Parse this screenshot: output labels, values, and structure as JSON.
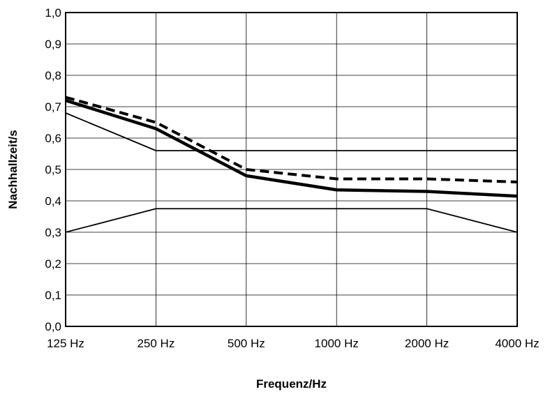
{
  "chart_data": {
    "type": "line",
    "title": "",
    "xlabel": "Frequenz/Hz",
    "ylabel": "Nachhallzeit/s",
    "categories": [
      "125 Hz",
      "250 Hz",
      "500 Hz",
      "1000 Hz",
      "2000 Hz",
      "4000 Hz"
    ],
    "yticks": [
      "0,0",
      "0,1",
      "0,2",
      "0,3",
      "0,4",
      "0,5",
      "0,6",
      "0,7",
      "0,8",
      "0,9",
      "1,0"
    ],
    "ylim": [
      0,
      1.0
    ],
    "grid": true,
    "legend": "none",
    "series": [
      {
        "style": "dashed-thick",
        "values": [
          0.73,
          0.65,
          0.5,
          0.47,
          0.47,
          0.46
        ]
      },
      {
        "style": "solid-thick",
        "values": [
          0.72,
          0.63,
          0.48,
          0.435,
          0.43,
          0.415
        ]
      },
      {
        "style": "solid-thin",
        "values": [
          0.68,
          0.56,
          0.56,
          0.56,
          0.56,
          0.56
        ]
      },
      {
        "style": "solid-thin",
        "values": [
          0.3,
          0.375,
          0.375,
          0.375,
          0.375,
          0.3
        ]
      }
    ]
  }
}
